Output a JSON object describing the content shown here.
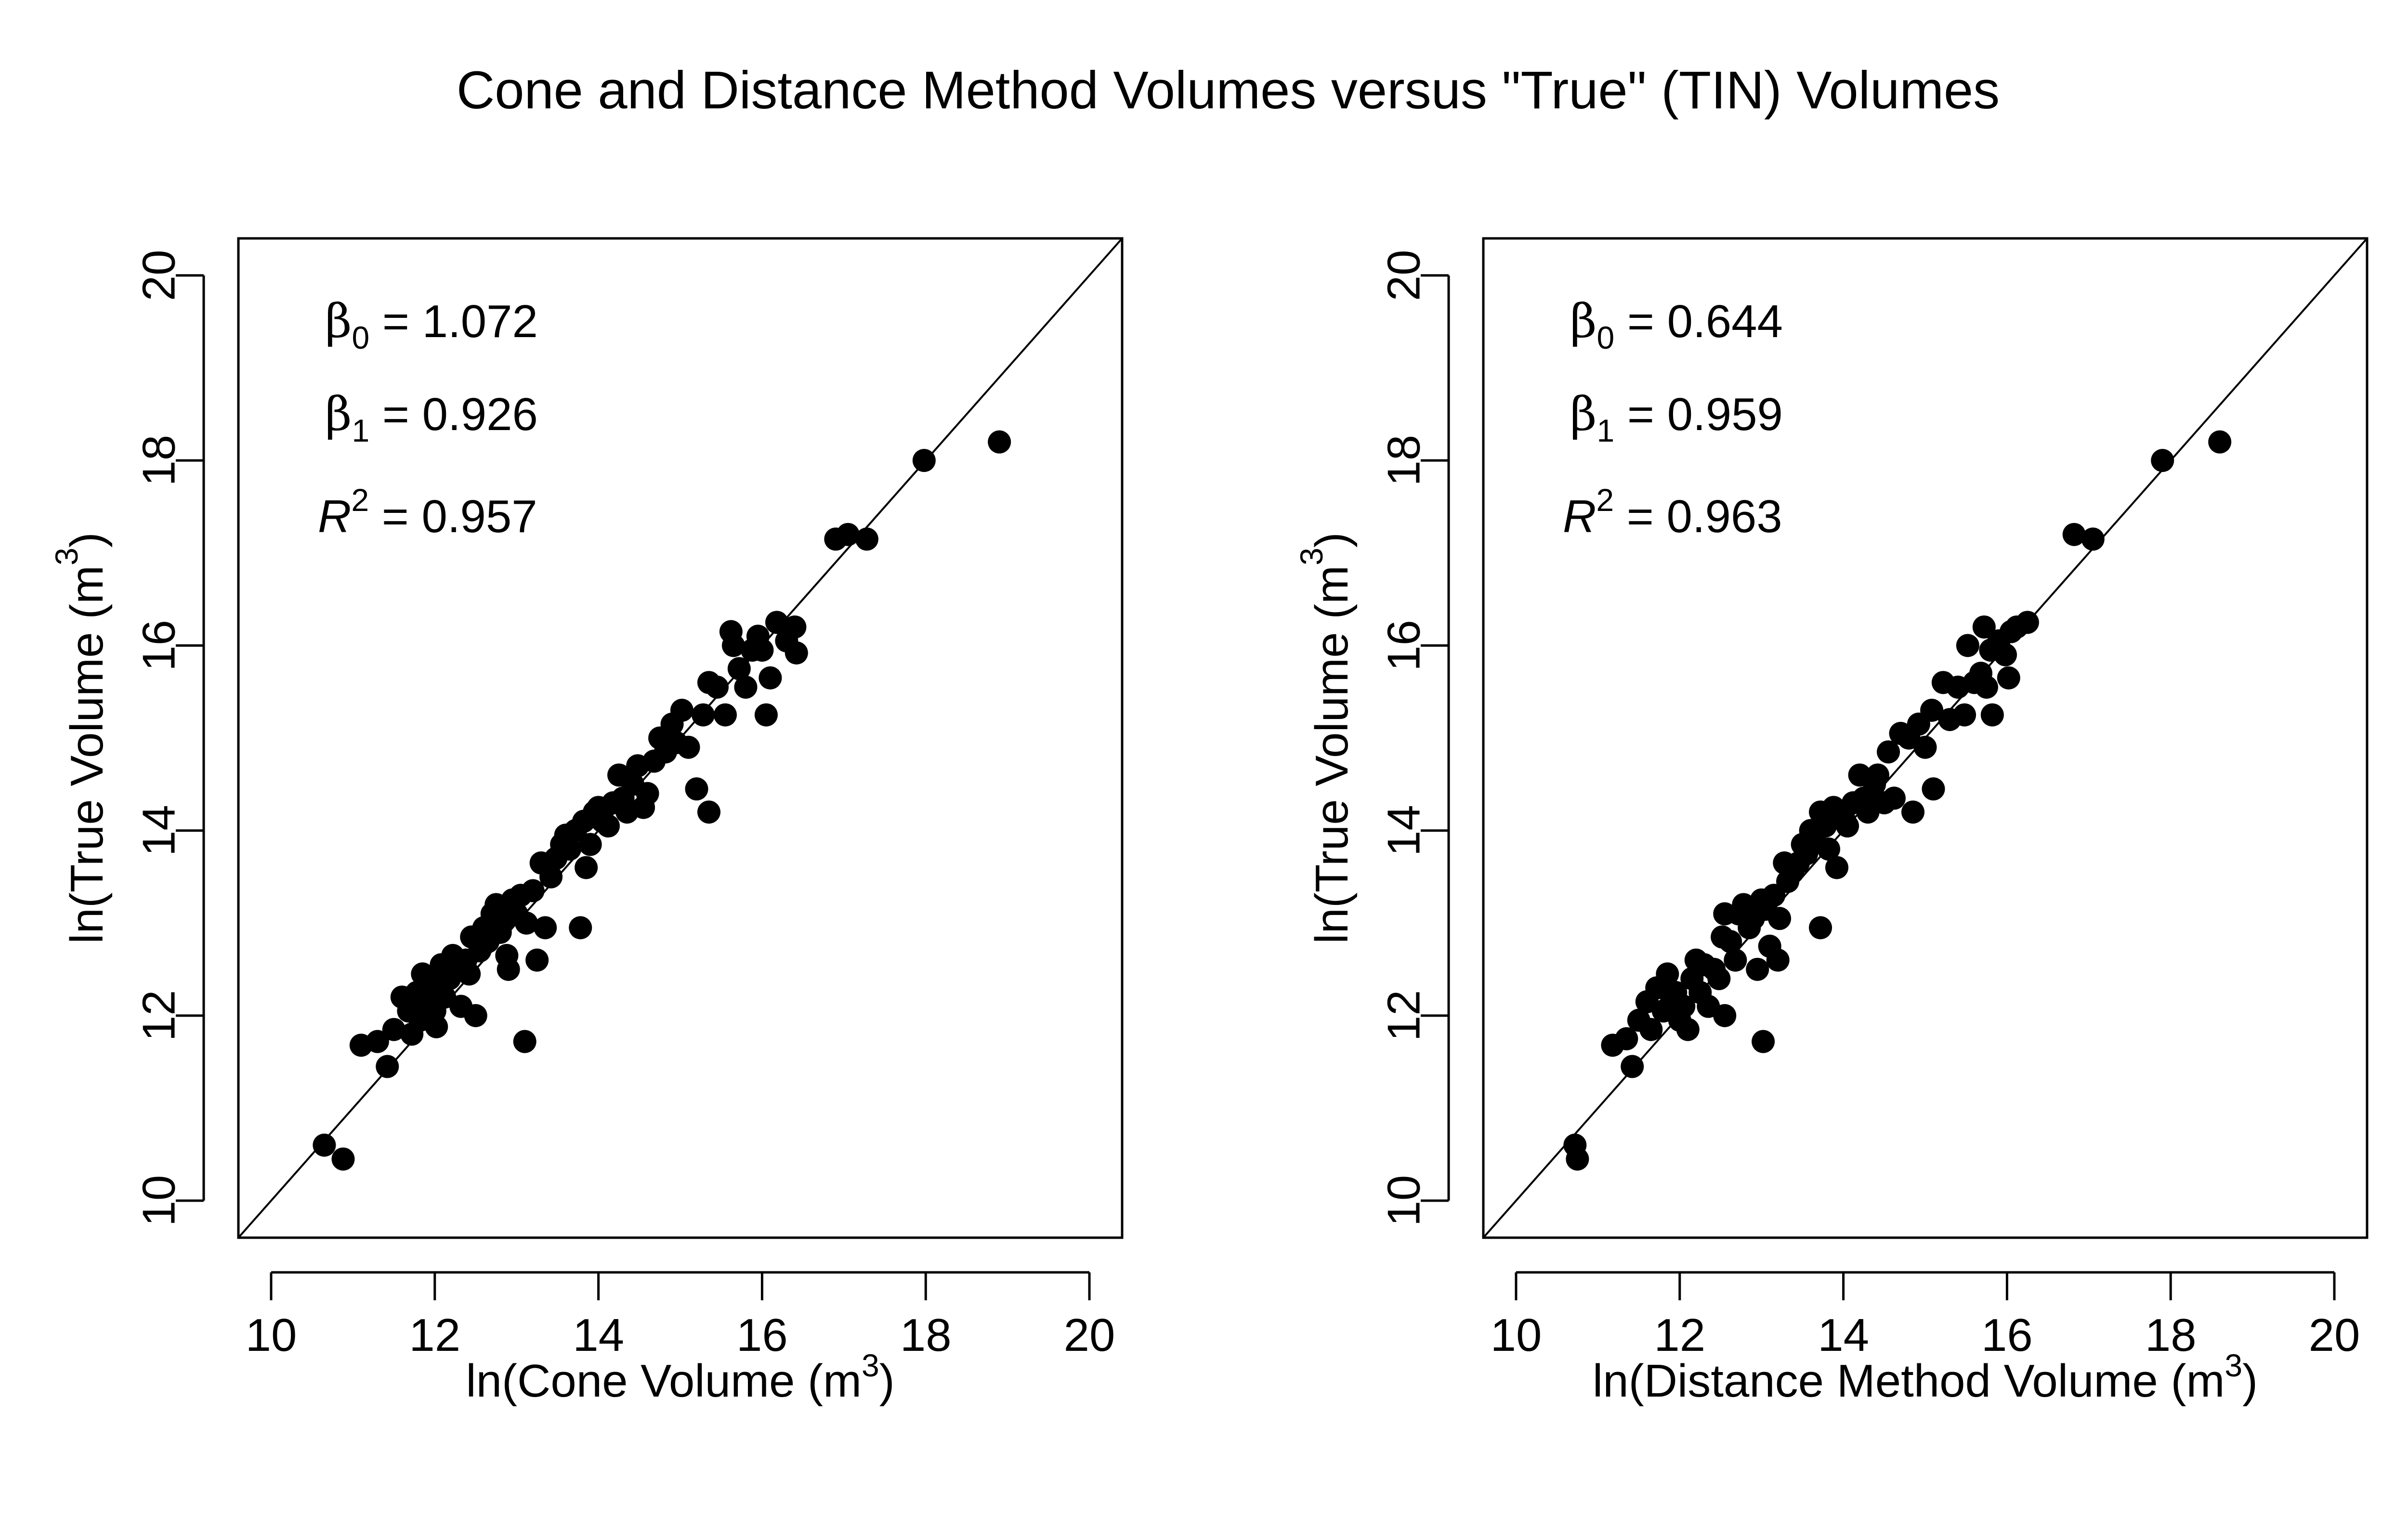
{
  "title": "Cone and Distance Method Volumes versus \"True\" (TIN) Volumes",
  "colors": {
    "points": "#000000",
    "axes": "#000000",
    "background": "#ffffff"
  },
  "chart_data": [
    {
      "type": "scatter",
      "panel": "left",
      "xlabel": {
        "pre": "ln(Cone Volume (m",
        "sup": "3",
        "post": ")"
      },
      "ylabel": {
        "pre": "ln(True Volume (m",
        "sup": "3",
        "post": ")"
      },
      "xlim": [
        9.6,
        20.4
      ],
      "ylim": [
        9.6,
        20.4
      ],
      "xticks": [
        "10",
        "12",
        "14",
        "16",
        "18",
        "20"
      ],
      "yticks": [
        "10",
        "12",
        "14",
        "16",
        "18",
        "20"
      ],
      "reference_line": "y = x",
      "grid": false,
      "annotations": {
        "b0_sym": "β",
        "b0_sub": "0",
        "b0_val": "= 1.072",
        "b1_sym": "β",
        "b1_sub": "1",
        "b1_val": "= 0.926",
        "r2_sym": "R",
        "r2_sup": "2",
        "r2_val": "= 0.957"
      },
      "points": [
        [
          10.65,
          10.6
        ],
        [
          10.88,
          10.45
        ],
        [
          11.1,
          11.68
        ],
        [
          11.3,
          11.72
        ],
        [
          11.42,
          11.45
        ],
        [
          11.5,
          11.85
        ],
        [
          11.6,
          12.2
        ],
        [
          11.68,
          12.05
        ],
        [
          11.72,
          11.8
        ],
        [
          11.78,
          12.25
        ],
        [
          11.82,
          11.95
        ],
        [
          11.85,
          12.45
        ],
        [
          11.9,
          12.15
        ],
        [
          11.95,
          12.3
        ],
        [
          12.0,
          12.05
        ],
        [
          12.02,
          11.88
        ],
        [
          12.05,
          12.35
        ],
        [
          12.08,
          12.55
        ],
        [
          12.12,
          12.2
        ],
        [
          12.18,
          12.4
        ],
        [
          12.22,
          12.65
        ],
        [
          12.28,
          12.5
        ],
        [
          12.32,
          12.1
        ],
        [
          12.38,
          12.6
        ],
        [
          12.42,
          12.45
        ],
        [
          12.45,
          12.85
        ],
        [
          12.5,
          12.0
        ],
        [
          12.55,
          12.7
        ],
        [
          12.6,
          12.95
        ],
        [
          12.65,
          12.8
        ],
        [
          12.7,
          13.1
        ],
        [
          12.75,
          13.2
        ],
        [
          12.8,
          12.9
        ],
        [
          12.85,
          13.05
        ],
        [
          12.88,
          12.65
        ],
        [
          12.9,
          12.5
        ],
        [
          12.95,
          13.25
        ],
        [
          13.0,
          13.1
        ],
        [
          13.05,
          13.3
        ],
        [
          13.1,
          11.72
        ],
        [
          13.12,
          13.0
        ],
        [
          13.2,
          13.35
        ],
        [
          13.25,
          12.6
        ],
        [
          13.3,
          13.65
        ],
        [
          13.35,
          12.95
        ],
        [
          13.42,
          13.5
        ],
        [
          13.48,
          13.7
        ],
        [
          13.55,
          13.85
        ],
        [
          13.6,
          13.95
        ],
        [
          13.65,
          13.8
        ],
        [
          13.72,
          14.0
        ],
        [
          13.78,
          12.95
        ],
        [
          13.82,
          14.1
        ],
        [
          13.85,
          13.6
        ],
        [
          13.9,
          13.85
        ],
        [
          13.95,
          14.2
        ],
        [
          14.0,
          14.25
        ],
        [
          14.05,
          14.1
        ],
        [
          14.12,
          14.05
        ],
        [
          14.18,
          14.3
        ],
        [
          14.25,
          14.6
        ],
        [
          14.3,
          14.35
        ],
        [
          14.35,
          14.2
        ],
        [
          14.42,
          14.5
        ],
        [
          14.48,
          14.7
        ],
        [
          14.55,
          14.25
        ],
        [
          14.6,
          14.4
        ],
        [
          14.68,
          14.75
        ],
        [
          14.75,
          15.0
        ],
        [
          14.82,
          14.85
        ],
        [
          14.9,
          15.15
        ],
        [
          14.95,
          14.95
        ],
        [
          15.02,
          15.3
        ],
        [
          15.1,
          14.9
        ],
        [
          15.2,
          14.45
        ],
        [
          15.28,
          15.25
        ],
        [
          15.35,
          15.6
        ],
        [
          15.35,
          14.2
        ],
        [
          15.45,
          15.55
        ],
        [
          15.55,
          15.25
        ],
        [
          15.62,
          16.15
        ],
        [
          15.65,
          16.0
        ],
        [
          15.72,
          15.75
        ],
        [
          15.8,
          15.55
        ],
        [
          15.88,
          15.95
        ],
        [
          15.95,
          16.1
        ],
        [
          16.0,
          15.95
        ],
        [
          16.05,
          15.25
        ],
        [
          16.1,
          15.65
        ],
        [
          16.18,
          16.25
        ],
        [
          16.3,
          16.05
        ],
        [
          16.4,
          16.2
        ],
        [
          16.42,
          15.92
        ],
        [
          16.9,
          17.15
        ],
        [
          17.05,
          17.2
        ],
        [
          17.28,
          17.15
        ],
        [
          17.98,
          18.0
        ],
        [
          18.9,
          18.2
        ]
      ]
    },
    {
      "type": "scatter",
      "panel": "right",
      "xlabel": {
        "pre": "ln(Distance Method Volume (m",
        "sup": "3",
        "post": ")"
      },
      "ylabel": {
        "pre": "ln(True Volume (m",
        "sup": "3",
        "post": ")"
      },
      "xlim": [
        9.6,
        20.4
      ],
      "ylim": [
        9.6,
        20.4
      ],
      "xticks": [
        "10",
        "12",
        "14",
        "16",
        "18",
        "20"
      ],
      "yticks": [
        "10",
        "12",
        "14",
        "16",
        "18",
        "20"
      ],
      "reference_line": "y = x",
      "grid": false,
      "annotations": {
        "b0_sym": "β",
        "b0_sub": "0",
        "b0_val": "= 0.644",
        "b1_sym": "β",
        "b1_sub": "1",
        "b1_val": "= 0.959",
        "r2_sym": "R",
        "r2_sup": "2",
        "r2_val": "= 0.963"
      },
      "points": [
        [
          10.72,
          10.6
        ],
        [
          10.75,
          10.45
        ],
        [
          11.18,
          11.68
        ],
        [
          11.35,
          11.75
        ],
        [
          11.42,
          11.45
        ],
        [
          11.5,
          11.95
        ],
        [
          11.6,
          12.15
        ],
        [
          11.65,
          11.85
        ],
        [
          11.72,
          12.3
        ],
        [
          11.8,
          12.05
        ],
        [
          11.85,
          12.45
        ],
        [
          11.9,
          12.15
        ],
        [
          11.95,
          12.25
        ],
        [
          12.0,
          11.95
        ],
        [
          12.05,
          12.1
        ],
        [
          12.1,
          11.85
        ],
        [
          12.15,
          12.4
        ],
        [
          12.2,
          12.6
        ],
        [
          12.25,
          12.25
        ],
        [
          12.3,
          12.55
        ],
        [
          12.35,
          12.1
        ],
        [
          12.42,
          12.5
        ],
        [
          12.48,
          12.4
        ],
        [
          12.52,
          12.85
        ],
        [
          12.55,
          13.1
        ],
        [
          12.55,
          12.0
        ],
        [
          12.62,
          12.8
        ],
        [
          12.68,
          12.6
        ],
        [
          12.72,
          13.1
        ],
        [
          12.78,
          13.2
        ],
        [
          12.85,
          12.95
        ],
        [
          12.9,
          13.05
        ],
        [
          12.95,
          12.5
        ],
        [
          13.0,
          13.25
        ],
        [
          13.02,
          11.72
        ],
        [
          13.05,
          13.15
        ],
        [
          13.1,
          12.75
        ],
        [
          13.15,
          13.3
        ],
        [
          13.2,
          12.6
        ],
        [
          13.22,
          13.05
        ],
        [
          13.28,
          13.65
        ],
        [
          13.32,
          13.45
        ],
        [
          13.38,
          13.55
        ],
        [
          13.45,
          13.65
        ],
        [
          13.5,
          13.85
        ],
        [
          13.55,
          13.75
        ],
        [
          13.6,
          14.0
        ],
        [
          13.65,
          13.9
        ],
        [
          13.72,
          12.95
        ],
        [
          13.72,
          14.2
        ],
        [
          13.78,
          14.05
        ],
        [
          13.82,
          13.8
        ],
        [
          13.88,
          14.25
        ],
        [
          13.92,
          13.6
        ],
        [
          14.0,
          14.15
        ],
        [
          14.05,
          14.05
        ],
        [
          14.12,
          14.3
        ],
        [
          14.2,
          14.6
        ],
        [
          14.25,
          14.35
        ],
        [
          14.3,
          14.2
        ],
        [
          14.38,
          14.5
        ],
        [
          14.42,
          14.6
        ],
        [
          14.5,
          14.3
        ],
        [
          14.55,
          14.85
        ],
        [
          14.62,
          14.35
        ],
        [
          14.7,
          15.05
        ],
        [
          14.8,
          15.0
        ],
        [
          14.85,
          14.2
        ],
        [
          14.92,
          15.15
        ],
        [
          15.0,
          14.9
        ],
        [
          15.08,
          15.3
        ],
        [
          15.1,
          14.45
        ],
        [
          15.22,
          15.6
        ],
        [
          15.3,
          15.2
        ],
        [
          15.4,
          15.55
        ],
        [
          15.48,
          15.25
        ],
        [
          15.52,
          16.0
        ],
        [
          15.6,
          15.6
        ],
        [
          15.68,
          15.7
        ],
        [
          15.72,
          16.2
        ],
        [
          15.75,
          15.55
        ],
        [
          15.8,
          15.95
        ],
        [
          15.82,
          15.25
        ],
        [
          15.9,
          16.05
        ],
        [
          15.98,
          15.9
        ],
        [
          16.02,
          15.65
        ],
        [
          16.05,
          16.15
        ],
        [
          16.12,
          16.2
        ],
        [
          16.25,
          16.25
        ],
        [
          16.82,
          17.2
        ],
        [
          17.05,
          17.15
        ],
        [
          17.9,
          18.0
        ],
        [
          18.6,
          18.2
        ]
      ]
    }
  ]
}
